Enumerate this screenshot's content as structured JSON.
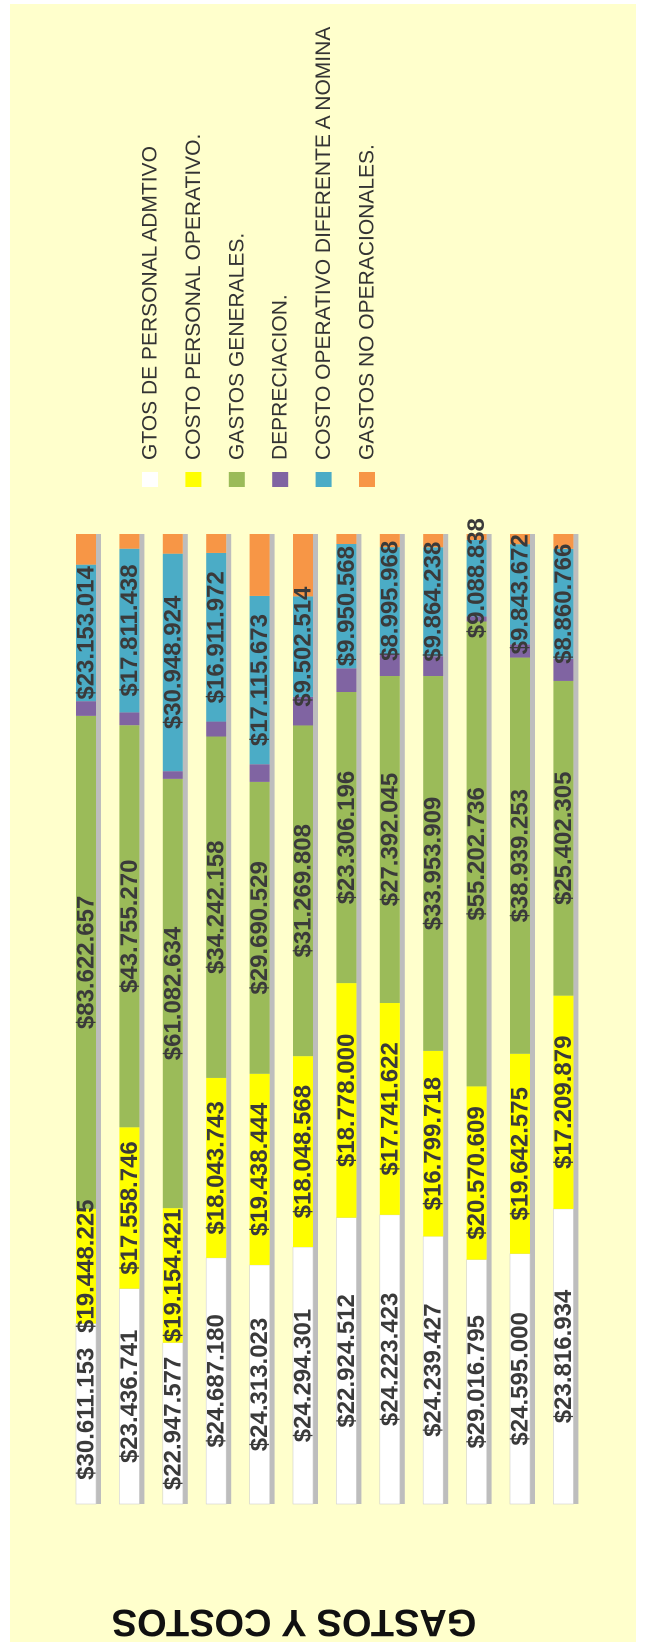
{
  "chart_data": {
    "type": "bar",
    "stacked": true,
    "normalized": true,
    "title": "GASTOS Y COSTOS",
    "categories": [
      "",
      "",
      "",
      "",
      "",
      "",
      "",
      "",
      "",
      "",
      "",
      ""
    ],
    "legend_position": "right",
    "series": [
      {
        "name": "GTOS DE PERSONAL ADMTIVO",
        "color": "#ffffff",
        "values": [
          30611153,
          23436741,
          22947577,
          24687180,
          24313023,
          24294301,
          22924512,
          24223423,
          24239427,
          29016795,
          24595000,
          23816934
        ],
        "labels": [
          "$30.611.153",
          "$23.436.741",
          "$22.947.577",
          "$24.687.180",
          "$24.313.023",
          "$24.294.301",
          "$22.924.512",
          "$24.223.423",
          "$24.239.427",
          "$29.016.795",
          "$24.595.000",
          "$23.816.934"
        ]
      },
      {
        "name": "COSTO PERSONAL OPERATIVO.",
        "color": "#ffff00",
        "values": [
          19448225,
          17558746,
          19154421,
          18043743,
          19438444,
          18048568,
          18778000,
          17741622,
          16799718,
          20570609,
          19642575,
          17209879
        ],
        "labels": [
          "$19.448.225",
          "$17.558.746",
          "$19.154.421",
          "$18.043.743",
          "$19.438.444",
          "$18.048.568",
          "$18.778.000",
          "$17.741.622",
          "$16.799.718",
          "$20.570.609",
          "$19.642.575",
          "$17.209.879"
        ]
      },
      {
        "name": "GASTOS GENERALES.",
        "color": "#9bbb59",
        "values": [
          83622657,
          43755270,
          61082634,
          34242158,
          29690529,
          31269808,
          23306196,
          27392045,
          33953909,
          55202736,
          38939253,
          25402305
        ],
        "labels": [
          "$83.622.657",
          "$43.755.270",
          "$61.082.634",
          "$34.242.158",
          "$29.690.529",
          "$31.269.808",
          "$23.306.196",
          "$27.392.045",
          "$33.953.909",
          "$55.202.736",
          "$38.939.253",
          "$25.402.305"
        ]
      },
      {
        "name": "DEPRECIACION.",
        "color": "#8064a2",
        "values": [
          2500000,
          1400000,
          1100000,
          1500000,
          1800000,
          2700000,
          1900000,
          1800000,
          1800000,
          600000,
          1300000,
          1800000
        ],
        "labels": [
          "",
          "",
          "",
          "",
          "",
          "",
          "",
          "",
          "",
          "",
          "",
          ""
        ]
      },
      {
        "name": "COSTO OPERATIVO DIFERENTE A NOMINA",
        "color": "#4bacc6",
        "values": [
          23153014,
          17811438,
          30948924,
          16911972,
          17115673,
          9502514,
          9950568,
          8995968,
          9864238,
          9088838,
          9843672,
          8860766
        ],
        "labels": [
          "$23.153.014",
          "$17.811.438",
          "$30.948.924",
          "$16.911.972",
          "$17.115.673",
          "$9.502.514",
          "$9.950.568",
          "$8.995.968",
          "$9.864.238",
          "$9.088.838",
          "$9.843.672",
          "$8.860.766"
        ]
      },
      {
        "name": "GASTOS NO OPERACIONALES.",
        "color": "#f79646",
        "values": [
          5200000,
          1600000,
          2800000,
          1900000,
          6300000,
          5900000,
          800000,
          1100000,
          1200000,
          700000,
          1000000,
          1200000
        ],
        "labels": [
          "",
          "",
          "",
          "",
          "",
          "",
          "",
          "",
          "",
          "",
          "",
          ""
        ]
      }
    ]
  }
}
